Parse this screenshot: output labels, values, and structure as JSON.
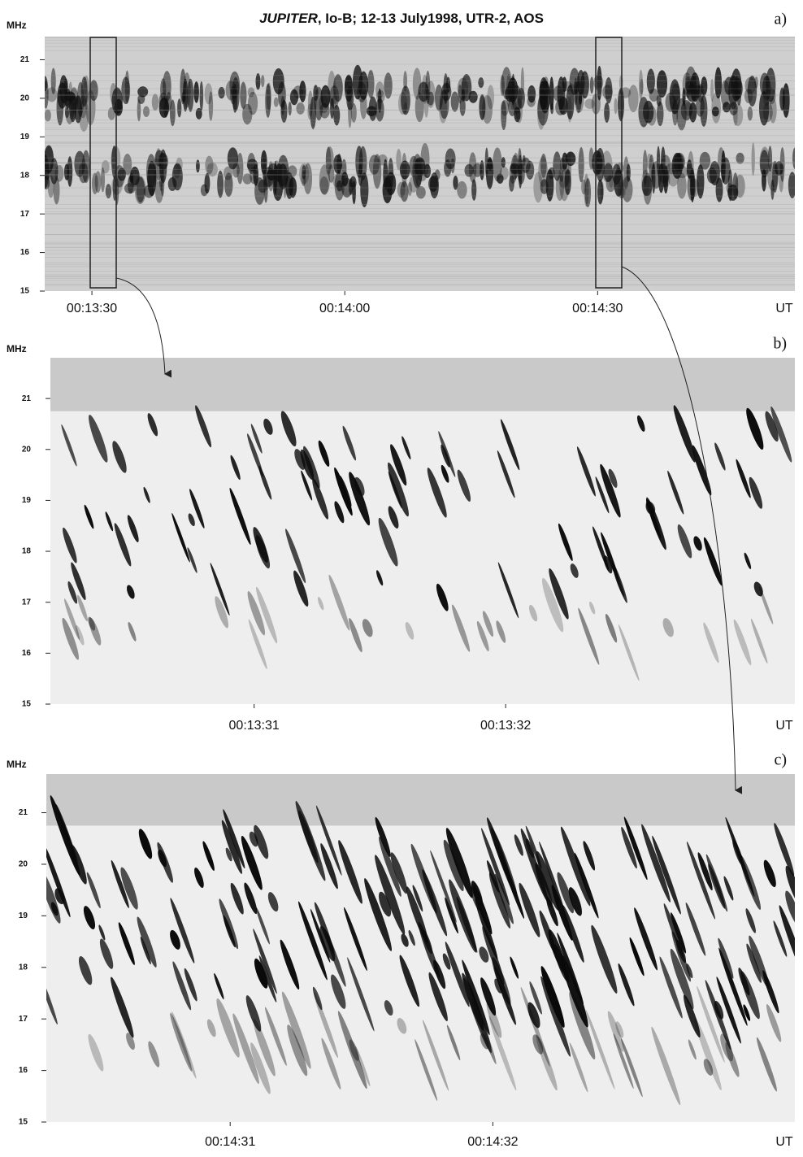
{
  "title": {
    "emphasis": "JUPITER",
    "rest": ", Io-B; 12-13 July1998, UTR-2, AOS"
  },
  "chart_data": [
    {
      "type": "spectrogram",
      "panel": "a)",
      "ylabel": "MHz",
      "xlabel": "UT",
      "ylim": [
        15,
        21.6
      ],
      "yticks": [
        15,
        16,
        17,
        18,
        19,
        20,
        21
      ],
      "xlim": [
        804.4,
        893.4
      ],
      "xticks": [
        {
          "value": 810,
          "label": "00:13:30"
        },
        {
          "value": 840,
          "label": "00:14:00"
        },
        {
          "value": 870,
          "label": "00:14:30"
        }
      ]
    },
    {
      "type": "spectrogram",
      "panel": "b)",
      "ylabel": "MHz",
      "xlabel": "UT",
      "ylim": [
        15,
        21.8
      ],
      "yticks": [
        15,
        16,
        17,
        18,
        19,
        20,
        21
      ],
      "xlim": [
        810.19,
        813.15
      ],
      "xticks": [
        {
          "value": 811,
          "label": "00:13:31"
        },
        {
          "value": 812,
          "label": "00:13:32"
        }
      ]
    },
    {
      "type": "spectrogram",
      "panel": "c)",
      "ylabel": "MHz",
      "xlabel": "UT",
      "ylim": [
        15,
        21.75
      ],
      "yticks": [
        15,
        16,
        17,
        18,
        19,
        20,
        21
      ],
      "xlim": [
        870.3,
        873.15
      ],
      "xticks": [
        {
          "value": 871,
          "label": "00:14:31"
        },
        {
          "value": 872,
          "label": "00:14:32"
        }
      ]
    }
  ]
}
